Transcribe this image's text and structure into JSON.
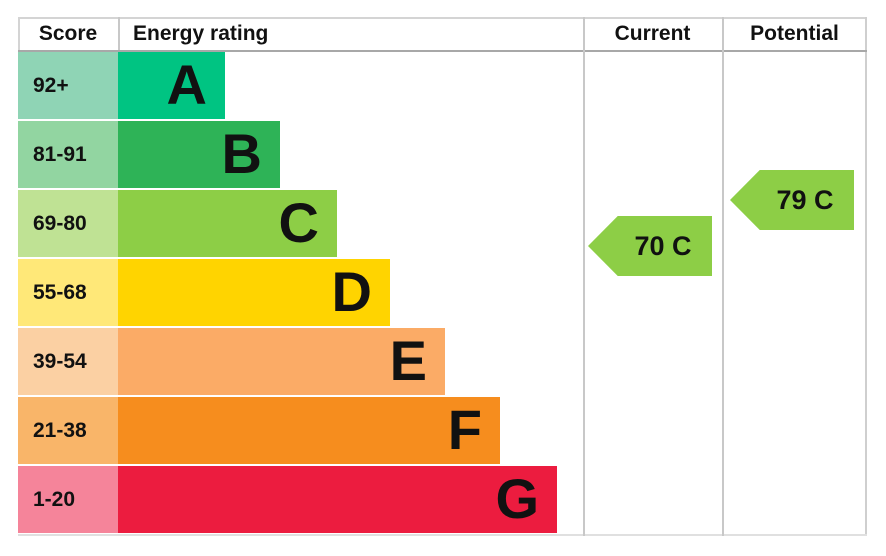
{
  "header": {
    "score": "Score",
    "energy_rating": "Energy rating",
    "current": "Current",
    "potential": "Potential"
  },
  "bands": [
    {
      "letter": "A",
      "range": "92+",
      "color": "#00c482",
      "tint": "#8fd4b5"
    },
    {
      "letter": "B",
      "range": "81-91",
      "color": "#2eb357",
      "tint": "#92d5a1"
    },
    {
      "letter": "C",
      "range": "69-80",
      "color": "#8dce46",
      "tint": "#bfe294"
    },
    {
      "letter": "D",
      "range": "55-68",
      "color": "#ffd400",
      "tint": "#ffe878"
    },
    {
      "letter": "E",
      "range": "39-54",
      "color": "#fbab66",
      "tint": "#fbd0a3"
    },
    {
      "letter": "F",
      "range": "21-38",
      "color": "#f68d1e",
      "tint": "#f9b569"
    },
    {
      "letter": "G",
      "range": "1-20",
      "color": "#ec1c3f",
      "tint": "#f5849a"
    }
  ],
  "current": {
    "label": "70 C",
    "value": 70,
    "band": "C",
    "arrow_color": "#8dce46"
  },
  "potential": {
    "label": "79 C",
    "value": 79,
    "band": "C",
    "arrow_color": "#8dce46"
  },
  "chart_data": {
    "type": "bar",
    "title": "EPC energy efficiency rating chart",
    "orientation": "horizontal",
    "categories": [
      "A",
      "B",
      "C",
      "D",
      "E",
      "F",
      "G"
    ],
    "score_ranges": [
      "92+",
      "81-91",
      "69-80",
      "55-68",
      "39-54",
      "21-38",
      "1-20"
    ],
    "band_colors": [
      "#00c482",
      "#2eb357",
      "#8dce46",
      "#ffd400",
      "#fbab66",
      "#f68d1e",
      "#ec1c3f"
    ],
    "bar_lengths_relative": [
      1,
      2,
      3,
      4,
      5,
      6,
      7
    ],
    "columns": [
      "Score",
      "Energy rating",
      "Current",
      "Potential"
    ],
    "markers": [
      {
        "label": "Current",
        "value": 70,
        "band": "C"
      },
      {
        "label": "Potential",
        "value": 79,
        "band": "C"
      }
    ],
    "legend_position": "none",
    "grid": false
  }
}
